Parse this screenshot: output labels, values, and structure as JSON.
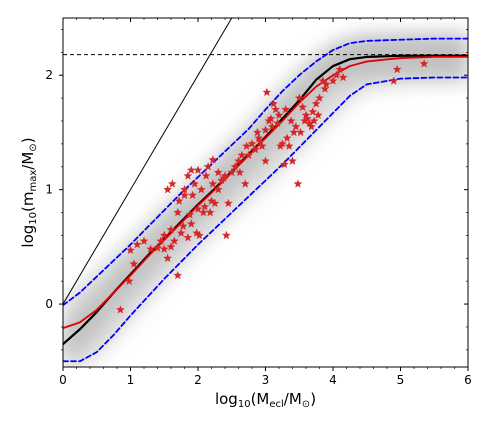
{
  "chart_data": {
    "type": "scatter",
    "title": "",
    "xlabel": {
      "base": "log",
      "sub": "10",
      "open": "(M",
      "subscript": "ecl",
      "mid": "/M",
      "subscript2": "⊙",
      "close": ")"
    },
    "ylabel": {
      "base": "log",
      "sub": "10",
      "open": "(m",
      "subscript": "max",
      "mid": "/M",
      "subscript2": "⊙",
      "close": ")"
    },
    "xlim": [
      0,
      6
    ],
    "ylim": [
      -0.55,
      2.5
    ],
    "xticks": [
      0,
      1,
      2,
      3,
      4,
      5,
      6
    ],
    "xtick_labels": [
      "0",
      "1",
      "2",
      "3",
      "4",
      "5",
      "6"
    ],
    "yticks": [
      0,
      1,
      2
    ],
    "ytick_labels": [
      "0",
      "1",
      "2"
    ],
    "legend": "none",
    "grid": false,
    "colors": {
      "density": "#808080",
      "median": "#000000",
      "mean": "#e00000",
      "bounds": "#0000ff",
      "points": "#d62728",
      "reference": "#000000"
    },
    "series": [
      {
        "type": "line",
        "style": "solid",
        "color": "#000000",
        "x": [
          0,
          2.5
        ],
        "y": [
          0,
          2.5
        ]
      },
      {
        "type": "hline",
        "style": "dashed",
        "color": "#000000",
        "y": 2.18
      },
      {
        "type": "line",
        "style": "solid-thick",
        "color": "#000000",
        "x": [
          0,
          0.25,
          0.5,
          0.75,
          1.0,
          1.25,
          1.5,
          1.75,
          2.0,
          2.25,
          2.5,
          2.75,
          3.0,
          3.25,
          3.5,
          3.75,
          4.0,
          4.25,
          4.5,
          5.0,
          5.5,
          6.0
        ],
        "y": [
          -0.35,
          -0.22,
          -0.07,
          0.1,
          0.26,
          0.42,
          0.57,
          0.72,
          0.87,
          1.01,
          1.16,
          1.31,
          1.46,
          1.62,
          1.78,
          1.96,
          2.08,
          2.14,
          2.16,
          2.17,
          2.17,
          2.17
        ]
      },
      {
        "type": "line",
        "style": "solid",
        "color": "#e00000",
        "x": [
          0,
          0.25,
          0.5,
          0.75,
          1.0,
          1.25,
          1.5,
          1.75,
          2.0,
          2.25,
          2.5,
          2.75,
          3.0,
          3.25,
          3.5,
          3.75,
          4.0,
          4.25,
          4.5,
          5.0,
          5.5,
          6.0
        ],
        "y": [
          -0.21,
          -0.16,
          -0.05,
          0.1,
          0.25,
          0.41,
          0.56,
          0.71,
          0.86,
          1.0,
          1.15,
          1.3,
          1.45,
          1.6,
          1.76,
          1.9,
          2.0,
          2.08,
          2.12,
          2.15,
          2.16,
          2.16
        ]
      },
      {
        "type": "line",
        "style": "dashed",
        "color": "#0000ff",
        "x": [
          0,
          0.25,
          0.5,
          0.75,
          1.0,
          1.25,
          1.5,
          1.75,
          2.0,
          2.25,
          2.5,
          2.75,
          3.0,
          3.25,
          3.5,
          3.75,
          4.0,
          4.25,
          4.5,
          5.0,
          5.5,
          6.0
        ],
        "y": [
          -0.01,
          0.1,
          0.24,
          0.38,
          0.52,
          0.67,
          0.82,
          0.97,
          1.11,
          1.25,
          1.39,
          1.53,
          1.7,
          1.86,
          2.0,
          2.12,
          2.22,
          2.28,
          2.3,
          2.31,
          2.32,
          2.32
        ]
      },
      {
        "type": "line",
        "style": "dashed",
        "color": "#0000ff",
        "x": [
          0,
          0.25,
          0.5,
          0.75,
          1.0,
          1.25,
          1.5,
          1.75,
          2.0,
          2.25,
          2.5,
          2.75,
          3.0,
          3.25,
          3.5,
          3.75,
          4.0,
          4.25,
          4.5,
          5.0,
          5.5,
          6.0
        ],
        "y": [
          -0.5,
          -0.5,
          -0.42,
          -0.27,
          -0.1,
          0.06,
          0.22,
          0.37,
          0.52,
          0.66,
          0.8,
          0.94,
          1.08,
          1.22,
          1.37,
          1.52,
          1.67,
          1.82,
          1.92,
          1.97,
          1.98,
          1.98
        ]
      },
      {
        "type": "scatter",
        "marker": "star",
        "color": "#d62728",
        "points": [
          [
            0.85,
            -0.05
          ],
          [
            0.98,
            0.2
          ],
          [
            1.0,
            0.47
          ],
          [
            1.05,
            0.35
          ],
          [
            1.1,
            0.52
          ],
          [
            1.2,
            0.55
          ],
          [
            1.3,
            0.48
          ],
          [
            1.4,
            0.49
          ],
          [
            1.45,
            0.55
          ],
          [
            1.5,
            0.6
          ],
          [
            1.5,
            0.48
          ],
          [
            1.55,
            0.4
          ],
          [
            1.55,
            1.0
          ],
          [
            1.6,
            0.5
          ],
          [
            1.6,
            0.65
          ],
          [
            1.62,
            1.05
          ],
          [
            1.65,
            0.55
          ],
          [
            1.7,
            0.25
          ],
          [
            1.7,
            0.8
          ],
          [
            1.72,
            0.9
          ],
          [
            1.75,
            0.62
          ],
          [
            1.78,
            0.68
          ],
          [
            1.8,
            0.95
          ],
          [
            1.8,
            1.0
          ],
          [
            1.85,
            0.58
          ],
          [
            1.85,
            1.12
          ],
          [
            1.88,
            0.78
          ],
          [
            1.9,
            0.7
          ],
          [
            1.9,
            1.17
          ],
          [
            1.92,
            0.95
          ],
          [
            1.95,
            1.05
          ],
          [
            1.98,
            0.62
          ],
          [
            2.0,
            0.83
          ],
          [
            2.0,
            1.17
          ],
          [
            2.02,
            0.6
          ],
          [
            2.05,
            1.0
          ],
          [
            2.08,
            0.8
          ],
          [
            2.1,
            0.85
          ],
          [
            2.12,
            1.12
          ],
          [
            2.15,
            1.2
          ],
          [
            2.18,
            0.8
          ],
          [
            2.2,
            0.9
          ],
          [
            2.22,
            1.05
          ],
          [
            2.22,
            1.26
          ],
          [
            2.25,
            0.88
          ],
          [
            2.3,
            1.15
          ],
          [
            2.3,
            1.0
          ],
          [
            2.35,
            1.08
          ],
          [
            2.38,
            1.1
          ],
          [
            2.4,
            1.12
          ],
          [
            2.42,
            0.6
          ],
          [
            2.45,
            0.88
          ],
          [
            2.5,
            1.15
          ],
          [
            2.55,
            1.2
          ],
          [
            2.6,
            1.25
          ],
          [
            2.62,
            1.15
          ],
          [
            2.65,
            1.3
          ],
          [
            2.7,
            1.05
          ],
          [
            2.72,
            1.38
          ],
          [
            2.75,
            1.3
          ],
          [
            2.8,
            1.4
          ],
          [
            2.85,
            1.35
          ],
          [
            2.88,
            1.5
          ],
          [
            2.9,
            1.45
          ],
          [
            2.92,
            1.42
          ],
          [
            2.95,
            1.38
          ],
          [
            3.0,
            1.25
          ],
          [
            3.0,
            1.52
          ],
          [
            3.02,
            1.85
          ],
          [
            3.05,
            1.6
          ],
          [
            3.08,
            1.62
          ],
          [
            3.1,
            1.55
          ],
          [
            3.12,
            1.75
          ],
          [
            3.15,
            1.7
          ],
          [
            3.18,
            1.58
          ],
          [
            3.2,
            1.65
          ],
          [
            3.22,
            1.38
          ],
          [
            3.25,
            1.4
          ],
          [
            3.28,
            1.22
          ],
          [
            3.3,
            1.7
          ],
          [
            3.32,
            1.45
          ],
          [
            3.35,
            1.38
          ],
          [
            3.38,
            1.6
          ],
          [
            3.4,
            1.25
          ],
          [
            3.42,
            1.5
          ],
          [
            3.45,
            1.55
          ],
          [
            3.48,
            1.05
          ],
          [
            3.5,
            1.8
          ],
          [
            3.52,
            1.5
          ],
          [
            3.55,
            1.72
          ],
          [
            3.58,
            1.6
          ],
          [
            3.6,
            1.65
          ],
          [
            3.62,
            1.62
          ],
          [
            3.65,
            1.58
          ],
          [
            3.68,
            1.55
          ],
          [
            3.7,
            1.68
          ],
          [
            3.72,
            1.6
          ],
          [
            3.75,
            1.75
          ],
          [
            3.78,
            1.65
          ],
          [
            3.8,
            1.8
          ],
          [
            3.85,
            1.95
          ],
          [
            3.88,
            1.88
          ],
          [
            3.9,
            1.92
          ],
          [
            4.0,
            1.95
          ],
          [
            4.05,
            2.0
          ],
          [
            4.1,
            2.05
          ],
          [
            4.15,
            1.98
          ],
          [
            4.9,
            1.95
          ],
          [
            4.95,
            2.05
          ],
          [
            5.35,
            2.1
          ]
        ]
      }
    ]
  }
}
